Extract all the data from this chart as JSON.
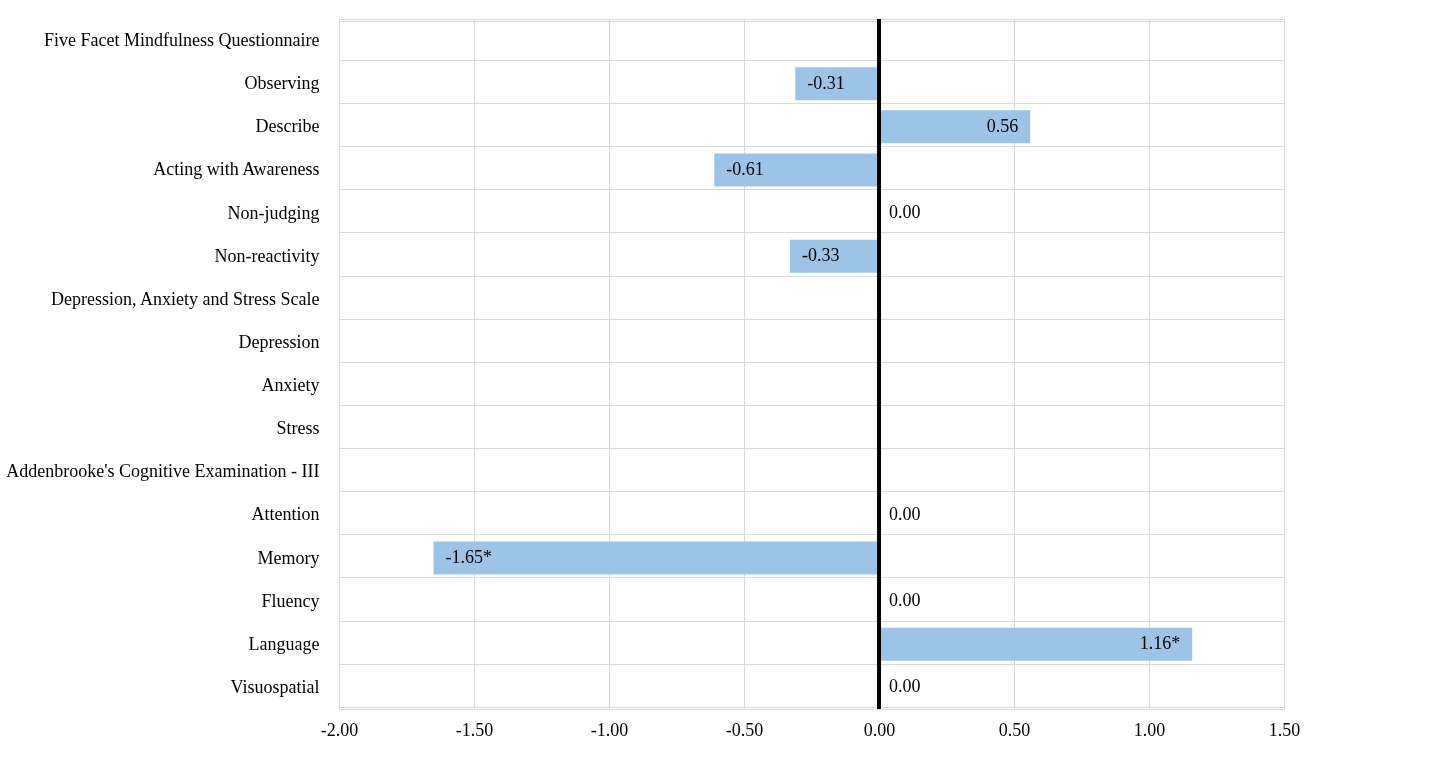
{
  "chart_data": {
    "type": "bar",
    "orientation": "horizontal",
    "categories": [
      "Five Facet Mindfulness Questionnaire",
      "Observing",
      "Describe",
      "Acting with Awareness",
      "Non-judging",
      "Non-reactivity",
      "Depression, Anxiety and Stress Scale",
      "Depression",
      "Anxiety",
      "Stress",
      "Addenbrooke's Cognitive Examination - III",
      "Attention",
      "Memory",
      "Fluency",
      "Language",
      "Visuospatial"
    ],
    "values": [
      null,
      -0.31,
      0.56,
      -0.61,
      0,
      -0.33,
      null,
      null,
      null,
      null,
      null,
      0,
      -1.65,
      0,
      1.16,
      0
    ],
    "value_labels": [
      null,
      "-0.31",
      "0.56",
      "-0.61",
      "0.00",
      "-0.33",
      null,
      null,
      null,
      null,
      null,
      "0.00",
      "-1.65*",
      "0.00",
      "1.16*",
      "0.00"
    ],
    "color": "#9dc3e6",
    "xlim": [
      -2,
      1.5
    ],
    "xticks": [
      {
        "value": -2,
        "label": "-2.00"
      },
      {
        "value": -1.5,
        "label": "-1.50"
      },
      {
        "value": -1,
        "label": "-1.00"
      },
      {
        "value": -0.5,
        "label": "-0.50"
      },
      {
        "value": 0,
        "label": "0.00"
      },
      {
        "value": 0.5,
        "label": "0.50"
      },
      {
        "value": 1,
        "label": "1.00"
      },
      {
        "value": 1.5,
        "label": "1.50"
      }
    ],
    "ref_lines": [
      {
        "axis": "x",
        "value": 0,
        "color": "#000000"
      }
    ],
    "grid": true
  }
}
